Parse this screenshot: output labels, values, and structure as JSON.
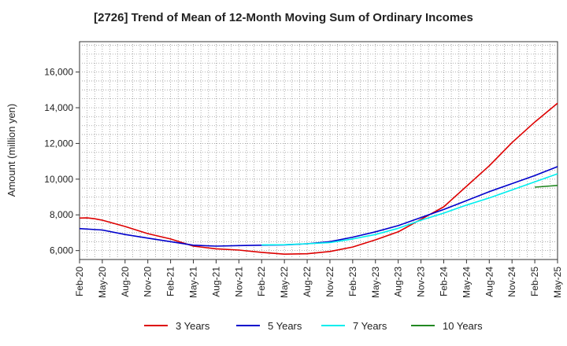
{
  "chart_data": {
    "type": "line",
    "title": "[2726]  Trend of Mean of 12-Month Moving Sum of Ordinary Incomes",
    "xlabel": "",
    "ylabel": "Amount (million yen)",
    "x_ticks": [
      "Feb-20",
      "May-20",
      "Aug-20",
      "Nov-20",
      "Feb-21",
      "May-21",
      "Aug-21",
      "Nov-21",
      "Feb-22",
      "May-22",
      "Aug-22",
      "Nov-22",
      "Feb-23",
      "May-23",
      "Aug-23",
      "Nov-23",
      "Feb-24",
      "May-24",
      "Aug-24",
      "Nov-24",
      "Feb-25",
      "May-25"
    ],
    "y_ticks": [
      6000,
      8000,
      10000,
      12000,
      14000,
      16000
    ],
    "y_tick_labels": [
      "6,000",
      "8,000",
      "10,000",
      "12,000",
      "14,000",
      "16,000"
    ],
    "ylim": [
      5500,
      17700
    ],
    "x_range_months": [
      0,
      63
    ],
    "grid": true,
    "legend_position": "bottom",
    "series": [
      {
        "name": "3 Years",
        "color": "#dd0000",
        "x_months": [
          0,
          1,
          2,
          3,
          6,
          9,
          12,
          15,
          18,
          21,
          24,
          27,
          30,
          33,
          36,
          39,
          42,
          45,
          48,
          51,
          54,
          57,
          60,
          63
        ],
        "values": [
          7820,
          7830,
          7780,
          7700,
          7350,
          6950,
          6650,
          6250,
          6100,
          6030,
          5900,
          5800,
          5820,
          5950,
          6200,
          6600,
          7050,
          7750,
          8450,
          9600,
          10750,
          12050,
          13200,
          14250
        ]
      },
      {
        "name": "5 Years",
        "color": "#0000cc",
        "x_months": [
          0,
          3,
          6,
          9,
          12,
          15,
          18,
          21,
          24,
          27,
          30,
          33,
          36,
          39,
          42,
          45,
          48,
          51,
          54,
          57,
          60,
          63
        ],
        "values": [
          7230,
          7150,
          6900,
          6700,
          6500,
          6300,
          6250,
          6280,
          6300,
          6320,
          6380,
          6500,
          6750,
          7050,
          7400,
          7850,
          8300,
          8800,
          9300,
          9750,
          10200,
          10700
        ]
      },
      {
        "name": "7 Years",
        "color": "#00eeee",
        "x_months": [
          24,
          27,
          30,
          33,
          36,
          39,
          42,
          45,
          48,
          51,
          54,
          57,
          60,
          63
        ],
        "values": [
          6320,
          6330,
          6380,
          6450,
          6650,
          6900,
          7250,
          7700,
          8100,
          8550,
          8950,
          9400,
          9850,
          10300
        ]
      },
      {
        "name": "10 Years",
        "color": "#228822",
        "x_months": [
          60,
          63
        ],
        "values": [
          9550,
          9650
        ]
      }
    ]
  }
}
